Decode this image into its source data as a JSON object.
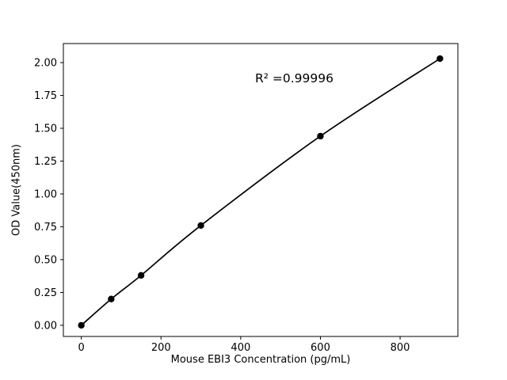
{
  "chart_data": {
    "type": "scatter",
    "x": [
      0,
      75,
      150,
      300,
      600,
      900
    ],
    "y": [
      0.0,
      0.2,
      0.38,
      0.76,
      1.44,
      2.03
    ],
    "line": true,
    "title": "",
    "xlabel": "Mouse EBI3 Concentration (pg/mL)",
    "ylabel": "OD Value(450nm)",
    "annotation": {
      "text": "R² =0.99996"
    },
    "x_ticks": [
      0,
      200,
      400,
      600,
      800
    ],
    "y_ticks": [
      0.0,
      0.25,
      0.5,
      0.75,
      1.0,
      1.25,
      1.5,
      1.75,
      2.0
    ],
    "xlim": [
      -45,
      945
    ],
    "ylim": [
      -0.085,
      2.145
    ],
    "grid": false,
    "legend": "none",
    "marker_color": "#000000",
    "line_color": "#000000",
    "background_color": "#ffffff"
  }
}
